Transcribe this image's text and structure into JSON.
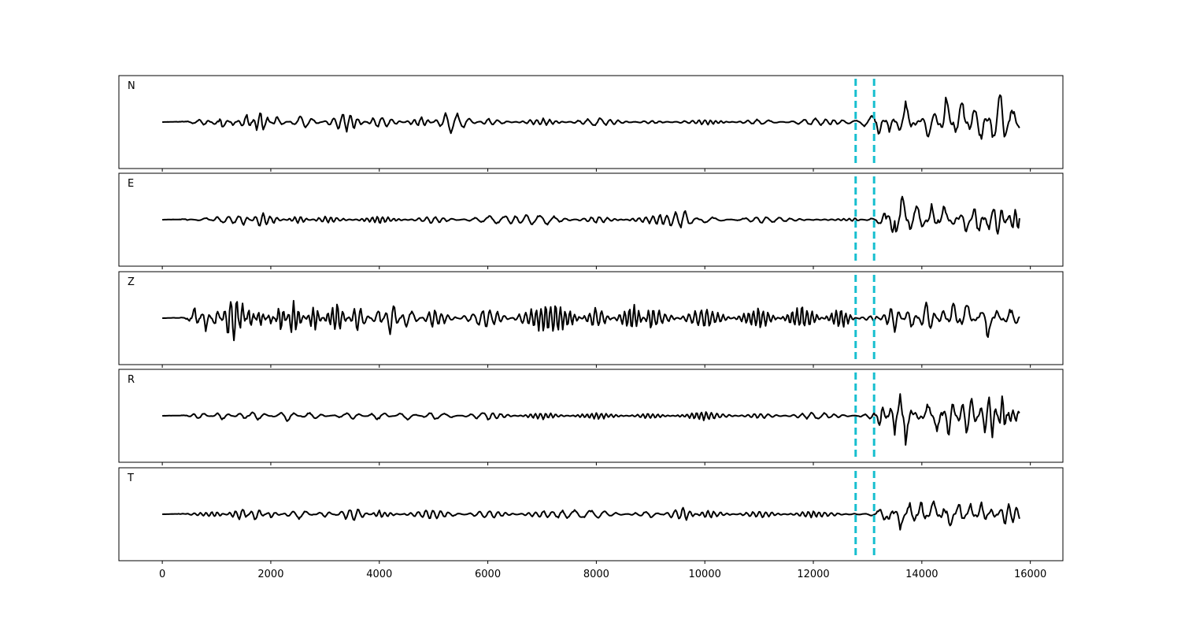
{
  "chart_data": {
    "type": "line",
    "title": "",
    "xlabel": "",
    "ylabel": "",
    "xlim": [
      -800,
      16600
    ],
    "x_ticks": [
      0,
      2000,
      4000,
      6000,
      8000,
      10000,
      12000,
      14000,
      16000
    ],
    "x_tick_labels": [
      "0",
      "2000",
      "4000",
      "6000",
      "8000",
      "10000",
      "12000",
      "14000",
      "16000"
    ],
    "sample_range": [
      0,
      15800
    ],
    "y_ticks": "none",
    "grid": false,
    "legend": "none",
    "vertical_markers": [
      {
        "x": 12780,
        "style": "dashed",
        "color": "#17becf"
      },
      {
        "x": 13120,
        "style": "dashed",
        "color": "#17becf"
      }
    ],
    "series": [
      {
        "name": "N",
        "ylim": [
          -1,
          1
        ],
        "points": [
          [
            0,
            0
          ],
          [
            500,
            0.02
          ],
          [
            800,
            0.1
          ],
          [
            1000,
            -0.12
          ],
          [
            1100,
            0.22
          ],
          [
            1300,
            -0.1
          ],
          [
            1550,
            0.26
          ],
          [
            1800,
            -0.36
          ],
          [
            2100,
            0.16
          ],
          [
            2600,
            -0.2
          ],
          [
            3400,
            0.28
          ],
          [
            4000,
            -0.2
          ],
          [
            4800,
            0.16
          ],
          [
            5300,
            -0.3
          ],
          [
            6000,
            0.1
          ],
          [
            7000,
            -0.1
          ],
          [
            8000,
            0.12
          ],
          [
            9000,
            -0.05
          ],
          [
            10000,
            0.08
          ],
          [
            11000,
            -0.08
          ],
          [
            12000,
            0.1
          ],
          [
            12780,
            0.04
          ],
          [
            13120,
            0.2
          ],
          [
            13200,
            -0.4
          ],
          [
            13400,
            0.3
          ],
          [
            13700,
            -0.55
          ],
          [
            13900,
            0.2
          ],
          [
            14100,
            -0.4
          ],
          [
            14300,
            -0.2
          ],
          [
            14450,
            0.85
          ],
          [
            14700,
            -0.8
          ],
          [
            14900,
            0.35
          ],
          [
            15100,
            0.6
          ],
          [
            15300,
            -0.5
          ],
          [
            15500,
            -0.9
          ],
          [
            15650,
            0.4
          ],
          [
            15800,
            0.15
          ]
        ]
      },
      {
        "name": "E",
        "ylim": [
          -1,
          1
        ],
        "points": [
          [
            0,
            0
          ],
          [
            500,
            0.02
          ],
          [
            800,
            -0.06
          ],
          [
            1000,
            0.08
          ],
          [
            1500,
            0.14
          ],
          [
            1800,
            -0.2
          ],
          [
            2500,
            0.1
          ],
          [
            3000,
            -0.1
          ],
          [
            4000,
            0.1
          ],
          [
            5000,
            -0.1
          ],
          [
            6000,
            0.1
          ],
          [
            7000,
            0.15
          ],
          [
            8000,
            -0.1
          ],
          [
            9000,
            0.1
          ],
          [
            9650,
            0.25
          ],
          [
            10000,
            -0.1
          ],
          [
            11000,
            0.1
          ],
          [
            12000,
            0
          ],
          [
            12780,
            0.04
          ],
          [
            13120,
            -0.05
          ],
          [
            13300,
            0.3
          ],
          [
            13450,
            -0.7
          ],
          [
            13550,
            0.8
          ],
          [
            13620,
            -0.85
          ],
          [
            13800,
            0.4
          ],
          [
            14000,
            0.3
          ],
          [
            14200,
            -0.5
          ],
          [
            14400,
            0.5
          ],
          [
            14600,
            -0.3
          ],
          [
            14800,
            0.5
          ],
          [
            15000,
            -0.55
          ],
          [
            15200,
            0.25
          ],
          [
            15400,
            0.5
          ],
          [
            15700,
            -0.4
          ],
          [
            15800,
            -0.35
          ]
        ]
      },
      {
        "name": "Z",
        "ylim": [
          -1,
          1
        ],
        "points": [
          [
            0,
            0
          ],
          [
            400,
            0.02
          ],
          [
            500,
            -0.1
          ],
          [
            600,
            0.3
          ],
          [
            800,
            -0.35
          ],
          [
            1000,
            0.35
          ],
          [
            1200,
            -0.5
          ],
          [
            1350,
            -0.9
          ],
          [
            1450,
            0.65
          ],
          [
            1600,
            -0.4
          ],
          [
            1800,
            0.3
          ],
          [
            2000,
            -0.2
          ],
          [
            2200,
            0.45
          ],
          [
            2400,
            -0.55
          ],
          [
            2800,
            0.35
          ],
          [
            3200,
            -0.5
          ],
          [
            3600,
            0.4
          ],
          [
            4000,
            -0.3
          ],
          [
            4200,
            0.55
          ],
          [
            4500,
            -0.3
          ],
          [
            5000,
            0.25
          ],
          [
            6000,
            -0.3
          ],
          [
            7000,
            0.4
          ],
          [
            7300,
            0.45
          ],
          [
            8000,
            -0.3
          ],
          [
            8700,
            0.4
          ],
          [
            9000,
            -0.3
          ],
          [
            10000,
            0.3
          ],
          [
            11000,
            -0.3
          ],
          [
            11800,
            0.35
          ],
          [
            12500,
            -0.3
          ],
          [
            12780,
            0
          ],
          [
            13120,
            0.1
          ],
          [
            13500,
            -0.35
          ],
          [
            13800,
            0.35
          ],
          [
            14100,
            -0.5
          ],
          [
            14400,
            0.3
          ],
          [
            14600,
            -0.55
          ],
          [
            14800,
            0.6
          ],
          [
            15000,
            -0.2
          ],
          [
            15200,
            0.65
          ],
          [
            15400,
            -0.3
          ],
          [
            15600,
            0.3
          ],
          [
            15800,
            0.1
          ]
        ]
      },
      {
        "name": "R",
        "ylim": [
          -1,
          1
        ],
        "points": [
          [
            0,
            0
          ],
          [
            500,
            0.02
          ],
          [
            700,
            0.1
          ],
          [
            1100,
            -0.12
          ],
          [
            1500,
            0.12
          ],
          [
            1700,
            -0.15
          ],
          [
            2300,
            0.15
          ],
          [
            2700,
            -0.1
          ],
          [
            3500,
            0.1
          ],
          [
            4000,
            -0.12
          ],
          [
            4500,
            0.12
          ],
          [
            5000,
            -0.12
          ],
          [
            6000,
            0.12
          ],
          [
            7000,
            -0.1
          ],
          [
            8000,
            0.1
          ],
          [
            9000,
            -0.08
          ],
          [
            10000,
            0.12
          ],
          [
            11000,
            -0.08
          ],
          [
            12000,
            0.1
          ],
          [
            12780,
            0
          ],
          [
            13120,
            0.1
          ],
          [
            13250,
            -0.4
          ],
          [
            13500,
            0.5
          ],
          [
            13600,
            -0.8
          ],
          [
            13700,
            0.85
          ],
          [
            13900,
            -0.3
          ],
          [
            14100,
            0.4
          ],
          [
            14300,
            -0.5
          ],
          [
            14500,
            0.7
          ],
          [
            14700,
            -0.3
          ],
          [
            14900,
            -0.6
          ],
          [
            15100,
            0.3
          ],
          [
            15300,
            0.7
          ],
          [
            15500,
            -0.7
          ],
          [
            15600,
            0.2
          ],
          [
            15750,
            0.15
          ],
          [
            15800,
            0.2
          ]
        ]
      },
      {
        "name": "T",
        "ylim": [
          -1,
          1
        ],
        "points": [
          [
            0,
            0
          ],
          [
            500,
            0.02
          ],
          [
            1000,
            0.08
          ],
          [
            1500,
            -0.18
          ],
          [
            1700,
            0.2
          ],
          [
            2000,
            -0.1
          ],
          [
            2500,
            0.15
          ],
          [
            3000,
            -0.1
          ],
          [
            3500,
            0.2
          ],
          [
            4000,
            -0.1
          ],
          [
            5000,
            0.15
          ],
          [
            6000,
            -0.12
          ],
          [
            7000,
            0.1
          ],
          [
            8000,
            0.12
          ],
          [
            9000,
            -0.1
          ],
          [
            9600,
            0.2
          ],
          [
            10000,
            -0.12
          ],
          [
            11000,
            0.1
          ],
          [
            12000,
            -0.1
          ],
          [
            12780,
            0.02
          ],
          [
            13120,
            -0.05
          ],
          [
            13300,
            0.35
          ],
          [
            13400,
            -0.35
          ],
          [
            13600,
            0.45
          ],
          [
            13800,
            -0.45
          ],
          [
            14000,
            0.4
          ],
          [
            14200,
            -0.5
          ],
          [
            14400,
            0.3
          ],
          [
            14500,
            -0.55
          ],
          [
            14700,
            0.4
          ],
          [
            14900,
            -0.3
          ],
          [
            15100,
            0.35
          ],
          [
            15300,
            -0.2
          ],
          [
            15500,
            0.3
          ],
          [
            15800,
            0.2
          ]
        ]
      }
    ]
  }
}
